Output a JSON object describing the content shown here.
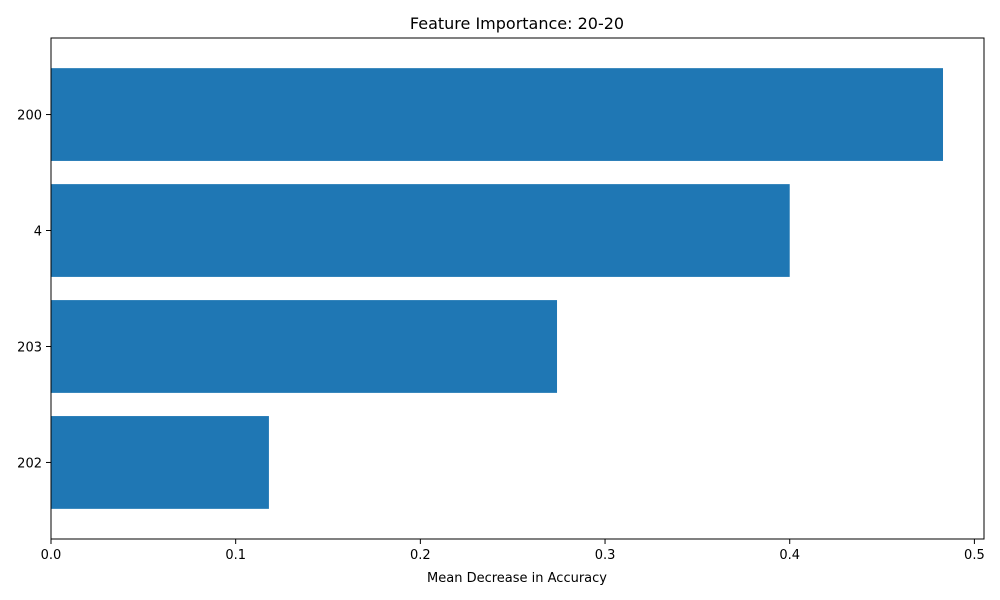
{
  "chart_data": {
    "type": "bar",
    "orientation": "horizontal",
    "title": "Feature Importance: 20-20",
    "xlabel": "Mean Decrease in Accuracy",
    "ylabel": "",
    "categories": [
      "200",
      "4",
      "203",
      "202"
    ],
    "values": [
      0.483,
      0.4,
      0.274,
      0.118
    ],
    "xlim": [
      0,
      0.5052
    ],
    "xticks": [
      0.0,
      0.1,
      0.2,
      0.3,
      0.4,
      0.5
    ],
    "xtick_labels": [
      "0.0",
      "0.1",
      "0.2",
      "0.3",
      "0.4",
      "0.5"
    ],
    "grid": false,
    "bar_color": "#1f77b4"
  }
}
